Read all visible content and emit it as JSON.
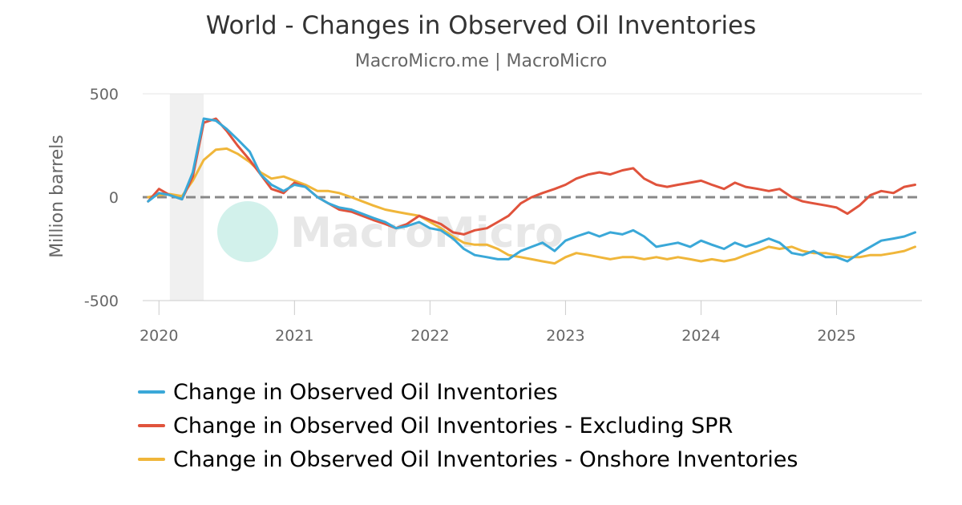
{
  "chart_data": {
    "type": "line",
    "title": "World - Changes in Observed Oil Inventories",
    "subtitle": "MacroMicro.me | MacroMicro",
    "watermark": "MacroMicro",
    "ylabel": "Million barrels",
    "xlabel": "",
    "ylim": [
      -500,
      500
    ],
    "xlim": [
      2019.88,
      2025.63
    ],
    "y_ticks": [
      "500",
      "0",
      "-500"
    ],
    "x_ticks": [
      "2020",
      "2021",
      "2022",
      "2023",
      "2024",
      "2025"
    ],
    "grid": "horizontal",
    "zero_line": "dashed",
    "shaded_period": [
      2020.08,
      2020.33
    ],
    "legend_position": "bottom",
    "series": [
      {
        "name": "Change in Observed Oil Inventories",
        "color": "#3aa8d8",
        "points": [
          [
            2019.92,
            -20
          ],
          [
            2020.0,
            20
          ],
          [
            2020.08,
            10
          ],
          [
            2020.17,
            -10
          ],
          [
            2020.25,
            120
          ],
          [
            2020.33,
            380
          ],
          [
            2020.42,
            370
          ],
          [
            2020.5,
            330
          ],
          [
            2020.58,
            280
          ],
          [
            2020.67,
            220
          ],
          [
            2020.75,
            110
          ],
          [
            2020.83,
            60
          ],
          [
            2020.92,
            30
          ],
          [
            2021.0,
            60
          ],
          [
            2021.08,
            50
          ],
          [
            2021.17,
            0
          ],
          [
            2021.25,
            -30
          ],
          [
            2021.33,
            -50
          ],
          [
            2021.42,
            -60
          ],
          [
            2021.5,
            -80
          ],
          [
            2021.58,
            -100
          ],
          [
            2021.67,
            -120
          ],
          [
            2021.75,
            -150
          ],
          [
            2021.83,
            -140
          ],
          [
            2021.92,
            -120
          ],
          [
            2022.0,
            -150
          ],
          [
            2022.08,
            -160
          ],
          [
            2022.17,
            -200
          ],
          [
            2022.25,
            -250
          ],
          [
            2022.33,
            -280
          ],
          [
            2022.42,
            -290
          ],
          [
            2022.5,
            -300
          ],
          [
            2022.58,
            -300
          ],
          [
            2022.67,
            -260
          ],
          [
            2022.75,
            -240
          ],
          [
            2022.83,
            -220
          ],
          [
            2022.92,
            -260
          ],
          [
            2023.0,
            -210
          ],
          [
            2023.08,
            -190
          ],
          [
            2023.17,
            -170
          ],
          [
            2023.25,
            -190
          ],
          [
            2023.33,
            -170
          ],
          [
            2023.42,
            -180
          ],
          [
            2023.5,
            -160
          ],
          [
            2023.58,
            -190
          ],
          [
            2023.67,
            -240
          ],
          [
            2023.75,
            -230
          ],
          [
            2023.83,
            -220
          ],
          [
            2023.92,
            -240
          ],
          [
            2024.0,
            -210
          ],
          [
            2024.08,
            -230
          ],
          [
            2024.17,
            -250
          ],
          [
            2024.25,
            -220
          ],
          [
            2024.33,
            -240
          ],
          [
            2024.42,
            -220
          ],
          [
            2024.5,
            -200
          ],
          [
            2024.58,
            -220
          ],
          [
            2024.67,
            -270
          ],
          [
            2024.75,
            -280
          ],
          [
            2024.83,
            -260
          ],
          [
            2024.92,
            -290
          ],
          [
            2025.0,
            -290
          ],
          [
            2025.08,
            -310
          ],
          [
            2025.17,
            -270
          ],
          [
            2025.25,
            -240
          ],
          [
            2025.33,
            -210
          ],
          [
            2025.42,
            -200
          ],
          [
            2025.5,
            -190
          ],
          [
            2025.58,
            -170
          ]
        ]
      },
      {
        "name": "Change in Observed Oil Inventories - Excluding SPR",
        "color": "#e0533c",
        "points": [
          [
            2019.92,
            -20
          ],
          [
            2020.0,
            40
          ],
          [
            2020.08,
            10
          ],
          [
            2020.17,
            -10
          ],
          [
            2020.25,
            100
          ],
          [
            2020.33,
            360
          ],
          [
            2020.42,
            380
          ],
          [
            2020.5,
            320
          ],
          [
            2020.58,
            250
          ],
          [
            2020.67,
            180
          ],
          [
            2020.75,
            110
          ],
          [
            2020.83,
            40
          ],
          [
            2020.92,
            20
          ],
          [
            2021.0,
            70
          ],
          [
            2021.08,
            50
          ],
          [
            2021.17,
            0
          ],
          [
            2021.25,
            -30
          ],
          [
            2021.33,
            -60
          ],
          [
            2021.42,
            -70
          ],
          [
            2021.5,
            -90
          ],
          [
            2021.58,
            -110
          ],
          [
            2021.67,
            -130
          ],
          [
            2021.75,
            -150
          ],
          [
            2021.83,
            -130
          ],
          [
            2021.92,
            -90
          ],
          [
            2022.0,
            -110
          ],
          [
            2022.08,
            -130
          ],
          [
            2022.17,
            -170
          ],
          [
            2022.25,
            -180
          ],
          [
            2022.33,
            -160
          ],
          [
            2022.42,
            -150
          ],
          [
            2022.5,
            -120
          ],
          [
            2022.58,
            -90
          ],
          [
            2022.67,
            -30
          ],
          [
            2022.75,
            0
          ],
          [
            2022.83,
            20
          ],
          [
            2022.92,
            40
          ],
          [
            2023.0,
            60
          ],
          [
            2023.08,
            90
          ],
          [
            2023.17,
            110
          ],
          [
            2023.25,
            120
          ],
          [
            2023.33,
            110
          ],
          [
            2023.42,
            130
          ],
          [
            2023.5,
            140
          ],
          [
            2023.58,
            90
          ],
          [
            2023.67,
            60
          ],
          [
            2023.75,
            50
          ],
          [
            2023.83,
            60
          ],
          [
            2023.92,
            70
          ],
          [
            2024.0,
            80
          ],
          [
            2024.08,
            60
          ],
          [
            2024.17,
            40
          ],
          [
            2024.25,
            70
          ],
          [
            2024.33,
            50
          ],
          [
            2024.42,
            40
          ],
          [
            2024.5,
            30
          ],
          [
            2024.58,
            40
          ],
          [
            2024.67,
            0
          ],
          [
            2024.75,
            -20
          ],
          [
            2024.83,
            -30
          ],
          [
            2024.92,
            -40
          ],
          [
            2025.0,
            -50
          ],
          [
            2025.08,
            -80
          ],
          [
            2025.17,
            -40
          ],
          [
            2025.25,
            10
          ],
          [
            2025.33,
            30
          ],
          [
            2025.42,
            20
          ],
          [
            2025.5,
            50
          ],
          [
            2025.58,
            60
          ]
        ]
      },
      {
        "name": "Change in Observed Oil Inventories - Onshore Inventories",
        "color": "#f0b63a",
        "points": [
          [
            2019.92,
            0
          ],
          [
            2020.0,
            10
          ],
          [
            2020.08,
            15
          ],
          [
            2020.17,
            5
          ],
          [
            2020.25,
            80
          ],
          [
            2020.33,
            180
          ],
          [
            2020.42,
            230
          ],
          [
            2020.5,
            235
          ],
          [
            2020.58,
            210
          ],
          [
            2020.67,
            170
          ],
          [
            2020.75,
            120
          ],
          [
            2020.83,
            90
          ],
          [
            2020.92,
            100
          ],
          [
            2021.0,
            80
          ],
          [
            2021.08,
            60
          ],
          [
            2021.17,
            30
          ],
          [
            2021.25,
            30
          ],
          [
            2021.33,
            20
          ],
          [
            2021.42,
            0
          ],
          [
            2021.5,
            -20
          ],
          [
            2021.58,
            -40
          ],
          [
            2021.67,
            -60
          ],
          [
            2021.75,
            -70
          ],
          [
            2021.83,
            -80
          ],
          [
            2021.92,
            -90
          ],
          [
            2022.0,
            -120
          ],
          [
            2022.08,
            -150
          ],
          [
            2022.17,
            -190
          ],
          [
            2022.25,
            -220
          ],
          [
            2022.33,
            -230
          ],
          [
            2022.42,
            -230
          ],
          [
            2022.5,
            -250
          ],
          [
            2022.58,
            -280
          ],
          [
            2022.67,
            -290
          ],
          [
            2022.75,
            -300
          ],
          [
            2022.83,
            -310
          ],
          [
            2022.92,
            -320
          ],
          [
            2023.0,
            -290
          ],
          [
            2023.08,
            -270
          ],
          [
            2023.17,
            -280
          ],
          [
            2023.25,
            -290
          ],
          [
            2023.33,
            -300
          ],
          [
            2023.42,
            -290
          ],
          [
            2023.5,
            -290
          ],
          [
            2023.58,
            -300
          ],
          [
            2023.67,
            -290
          ],
          [
            2023.75,
            -300
          ],
          [
            2023.83,
            -290
          ],
          [
            2023.92,
            -300
          ],
          [
            2024.0,
            -310
          ],
          [
            2024.08,
            -300
          ],
          [
            2024.17,
            -310
          ],
          [
            2024.25,
            -300
          ],
          [
            2024.33,
            -280
          ],
          [
            2024.42,
            -260
          ],
          [
            2024.5,
            -240
          ],
          [
            2024.58,
            -250
          ],
          [
            2024.67,
            -240
          ],
          [
            2024.75,
            -260
          ],
          [
            2024.83,
            -270
          ],
          [
            2024.92,
            -270
          ],
          [
            2025.0,
            -280
          ],
          [
            2025.08,
            -290
          ],
          [
            2025.17,
            -290
          ],
          [
            2025.25,
            -280
          ],
          [
            2025.33,
            -280
          ],
          [
            2025.42,
            -270
          ],
          [
            2025.5,
            -260
          ],
          [
            2025.58,
            -240
          ]
        ]
      }
    ]
  }
}
